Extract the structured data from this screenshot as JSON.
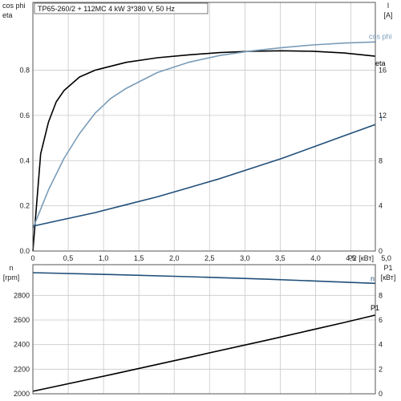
{
  "chart_data": [
    {
      "type": "line",
      "title": "TP65-260/2 + 112MC   4 kW   3*380 V, 50 Hz",
      "xlabel": "P2 [кВт]",
      "xlim": [
        0,
        2.2
      ],
      "x_ticks": [
        "0",
        "0,5",
        "1,0",
        "1,5",
        "2,0",
        "2,5",
        "3,0",
        "3,5",
        "4,0",
        "4,5",
        "5,0"
      ],
      "x_tick_values": [
        0,
        0.227,
        0.454,
        0.681,
        0.908,
        1.135,
        1.362,
        1.589,
        1.816,
        2.043,
        2.27
      ],
      "ylabel_left": [
        "cos phi",
        "eta"
      ],
      "ylim_left": [
        0,
        1.1
      ],
      "y_ticks_left": [
        "0.0",
        "0.2",
        "0.4",
        "0.6",
        "0.8"
      ],
      "y_tick_values_left": [
        0,
        0.2,
        0.4,
        0.6,
        0.8
      ],
      "ylabel_right": [
        "I",
        "[A]"
      ],
      "ylim_right": [
        0,
        22
      ],
      "y_ticks_right": [
        "0",
        "4",
        "8",
        "12",
        "16"
      ],
      "y_tick_values_right": [
        0,
        4,
        8,
        12,
        16
      ],
      "grid": true,
      "series": [
        {
          "name": "eta",
          "axis": "left",
          "color": "#000000",
          "x": [
            0,
            0.05,
            0.1,
            0.15,
            0.2,
            0.3,
            0.4,
            0.6,
            0.8,
            1.0,
            1.2,
            1.4,
            1.6,
            1.8,
            2.0,
            2.2
          ],
          "y": [
            0,
            0.43,
            0.57,
            0.66,
            0.71,
            0.77,
            0.8,
            0.835,
            0.855,
            0.868,
            0.878,
            0.884,
            0.886,
            0.884,
            0.876,
            0.862
          ]
        },
        {
          "name": "cos phi",
          "axis": "left",
          "color": "#7a9cb8",
          "x": [
            0,
            0.1,
            0.2,
            0.3,
            0.4,
            0.5,
            0.6,
            0.8,
            1.0,
            1.2,
            1.4,
            1.6,
            1.8,
            2.0,
            2.2
          ],
          "y": [
            0.1,
            0.27,
            0.41,
            0.52,
            0.61,
            0.675,
            0.72,
            0.79,
            0.835,
            0.865,
            0.885,
            0.9,
            0.912,
            0.92,
            0.925
          ]
        },
        {
          "name": "I",
          "axis": "right",
          "color": "#1f4e79",
          "x": [
            0,
            0.2,
            0.4,
            0.6,
            0.8,
            1.0,
            1.2,
            1.4,
            1.6,
            1.8,
            2.0,
            2.2
          ],
          "y": [
            2.2,
            2.8,
            3.4,
            4.1,
            4.8,
            5.6,
            6.4,
            7.3,
            8.2,
            9.2,
            10.2,
            11.2
          ]
        }
      ]
    },
    {
      "type": "line",
      "xlim": [
        0,
        2.2
      ],
      "ylabel_left": [
        "n",
        "[rpm]"
      ],
      "ylim_left": [
        2000,
        3050
      ],
      "y_ticks_left": [
        "2000",
        "2200",
        "2400",
        "2600",
        "2800"
      ],
      "y_tick_values_left": [
        2000,
        2200,
        2400,
        2600,
        2800
      ],
      "ylabel_right": [
        "P1",
        "[кВт]"
      ],
      "ylim_right": [
        0,
        10.5
      ],
      "y_ticks_right": [
        "0",
        "2",
        "4",
        "6",
        "8"
      ],
      "y_tick_values_right": [
        0,
        2,
        4,
        6,
        8
      ],
      "grid": true,
      "series": [
        {
          "name": "n",
          "axis": "left",
          "color": "#1f4e79",
          "x": [
            0,
            0.5,
            1.0,
            1.5,
            2.0,
            2.2
          ],
          "y": [
            2985,
            2970,
            2952,
            2932,
            2908,
            2898
          ]
        },
        {
          "name": "P1",
          "axis": "right",
          "color": "#000000",
          "x": [
            0,
            0.5,
            1.0,
            1.5,
            2.0,
            2.2
          ],
          "y": [
            0.2,
            1.55,
            2.95,
            4.35,
            5.8,
            6.4
          ]
        }
      ]
    }
  ]
}
